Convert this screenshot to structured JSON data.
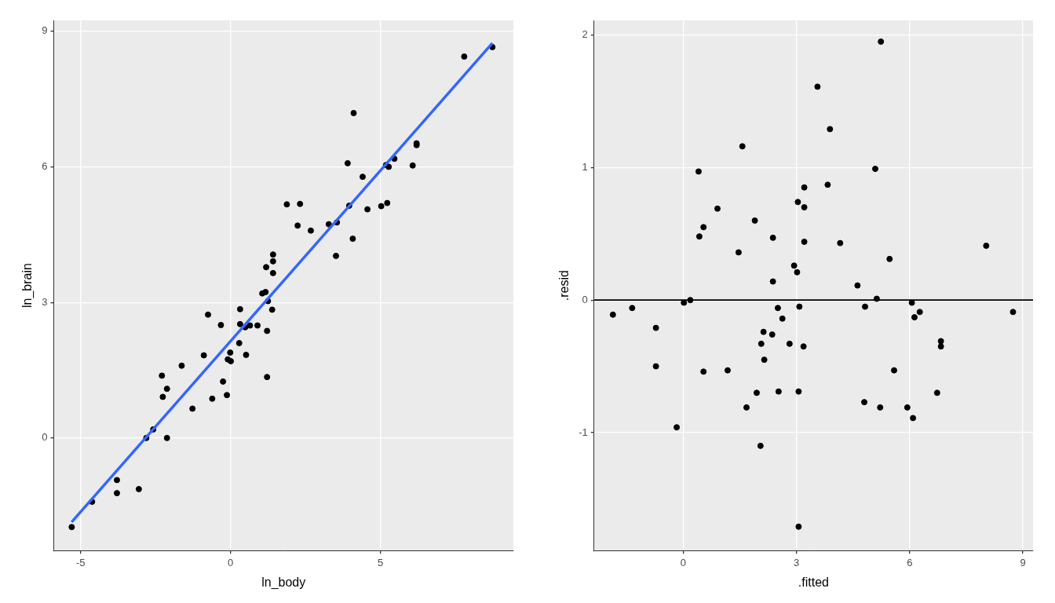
{
  "chart_data": [
    {
      "type": "scatter",
      "x_label": "ln_body",
      "y_label": "ln_brain",
      "color": "#000000",
      "grid": true,
      "xlim": [
        -5.9,
        9.44
      ],
      "ylim": [
        -2.49,
        9.24
      ],
      "xticks": [
        -5,
        0,
        5
      ],
      "yticks": [
        0,
        3,
        6,
        9
      ],
      "x": [
        -5.3,
        -4.62,
        -3.79,
        -3.79,
        -3.06,
        -2.81,
        -2.58,
        -2.29,
        -2.26,
        -2.12,
        -2.12,
        -1.63,
        -1.27,
        -0.89,
        -0.75,
        -0.61,
        -0.32,
        -0.25,
        -0.12,
        -0.09,
        -0.01,
        0.01,
        0.29,
        0.32,
        0.32,
        0.49,
        0.52,
        0.65,
        0.9,
        1.06,
        1.17,
        1.19,
        1.25,
        1.22,
        1.22,
        1.39,
        1.42,
        1.42,
        1.42,
        1.88,
        2.24,
        2.32,
        2.68,
        3.28,
        3.55,
        3.52,
        3.91,
        3.96,
        4.08,
        4.11,
        4.41,
        4.57,
        5.03,
        5.19,
        5.23,
        5.28,
        5.47,
        6.21,
        6.21,
        6.08,
        7.8,
        8.74
      ],
      "values": [
        -1.97,
        -1.41,
        -0.93,
        -1.22,
        -1.13,
        0.0,
        0.19,
        1.38,
        0.91,
        1.09,
        0.0,
        1.6,
        0.65,
        1.83,
        2.73,
        0.87,
        2.5,
        1.25,
        0.95,
        1.74,
        1.89,
        1.7,
        2.1,
        2.85,
        2.52,
        2.45,
        1.84,
        2.49,
        2.49,
        3.2,
        3.23,
        3.78,
        3.03,
        2.37,
        1.35,
        2.84,
        4.06,
        3.91,
        3.65,
        5.17,
        4.7,
        5.18,
        4.59,
        4.73,
        4.77,
        4.03,
        6.08,
        5.14,
        4.41,
        7.19,
        5.78,
        5.06,
        5.13,
        6.04,
        5.2,
        6.0,
        6.18,
        6.52,
        6.48,
        6.03,
        8.44,
        8.65
      ],
      "fit_line": {
        "x": [
          -5.3,
          8.74
        ],
        "values": [
          -1.86,
          8.74
        ],
        "color": "#3366FF"
      }
    },
    {
      "type": "scatter",
      "x_label": ".fitted",
      "y_label": ".resid",
      "color": "#000000",
      "grid": true,
      "xlim": [
        -2.36,
        9.27
      ],
      "ylim": [
        -1.89,
        2.11
      ],
      "xticks": [
        0,
        3,
        6,
        9
      ],
      "yticks": [
        -1,
        0,
        1,
        2
      ],
      "x": [
        -1.86,
        -1.35,
        -0.72,
        -0.72,
        -0.17,
        0.02,
        0.19,
        0.41,
        0.43,
        0.54,
        0.54,
        0.91,
        1.18,
        1.47,
        1.57,
        1.68,
        1.9,
        1.95,
        2.05,
        2.07,
        2.13,
        2.15,
        2.36,
        2.38,
        2.38,
        2.51,
        2.53,
        2.63,
        2.82,
        2.94,
        3.02,
        3.04,
        3.08,
        3.06,
        3.06,
        3.19,
        3.21,
        3.21,
        3.21,
        3.56,
        3.83,
        3.89,
        4.16,
        4.62,
        4.82,
        4.8,
        5.09,
        5.13,
        5.22,
        5.24,
        5.47,
        5.59,
        5.94,
        6.06,
        6.09,
        6.13,
        6.27,
        6.83,
        6.83,
        6.73,
        8.03,
        8.74
      ],
      "values": [
        -0.11,
        -0.06,
        -0.21,
        -0.5,
        -0.96,
        -0.02,
        0.0,
        0.97,
        0.48,
        0.55,
        -0.54,
        0.69,
        -0.53,
        0.36,
        1.16,
        -0.81,
        0.6,
        -0.7,
        -1.1,
        -0.33,
        -0.24,
        -0.45,
        -0.26,
        0.47,
        0.14,
        -0.06,
        -0.69,
        -0.14,
        -0.33,
        0.26,
        0.21,
        0.74,
        -0.05,
        -0.69,
        -1.71,
        -0.35,
        0.85,
        0.7,
        0.44,
        1.61,
        0.87,
        1.29,
        0.43,
        0.11,
        -0.05,
        -0.77,
        0.99,
        0.01,
        -0.81,
        1.95,
        0.31,
        -0.53,
        -0.81,
        -0.02,
        -0.89,
        -0.13,
        -0.09,
        -0.31,
        -0.35,
        -0.7,
        0.41,
        -0.09
      ],
      "hline": {
        "value": 0,
        "color": "#000000"
      }
    }
  ]
}
